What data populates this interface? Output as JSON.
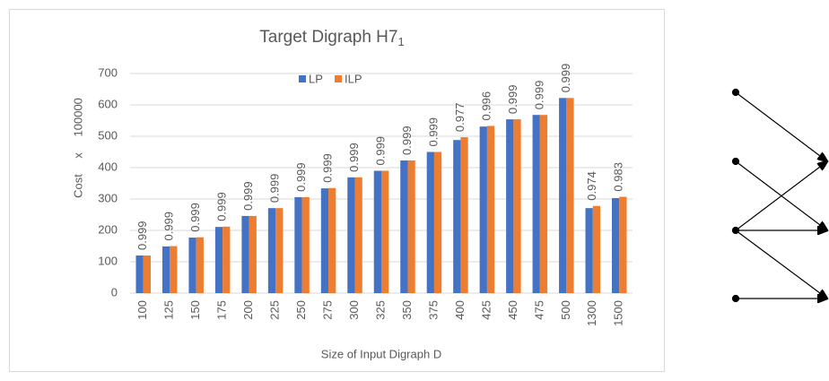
{
  "chart_data": {
    "type": "bar",
    "title": "Target Digraph H7",
    "title_subscript": "1",
    "x_label": "Size of Input Digraph D",
    "y_label": "Cost x 100000",
    "categories": [
      "100",
      "125",
      "150",
      "175",
      "200",
      "225",
      "250",
      "275",
      "300",
      "325",
      "350",
      "375",
      "400",
      "425",
      "450",
      "475",
      "500",
      "1300",
      "1500"
    ],
    "series": [
      {
        "name": "LP",
        "color": "#4472c4",
        "values": [
          120,
          149,
          177,
          211,
          246,
          271,
          306,
          334,
          369,
          390,
          423,
          450,
          488,
          531,
          554,
          568,
          622,
          271,
          303
        ]
      },
      {
        "name": "ILP",
        "color": "#ed7d31",
        "values": [
          120,
          150,
          178,
          212,
          246,
          271,
          306,
          335,
          369,
          390,
          423,
          450,
          497,
          533,
          554,
          568,
          622,
          278,
          307
        ]
      }
    ],
    "annotations": [
      0.999,
      0.999,
      0.999,
      0.999,
      0.999,
      0.999,
      0.999,
      0.999,
      0.999,
      0.999,
      0.999,
      0.999,
      0.977,
      0.996,
      0.999,
      0.999,
      0.999,
      0.974,
      0.983
    ],
    "ylim": [
      0,
      700
    ],
    "yticks": [
      0,
      100,
      200,
      300,
      400,
      500,
      600,
      700
    ],
    "grid": true,
    "legend": "top"
  }
}
